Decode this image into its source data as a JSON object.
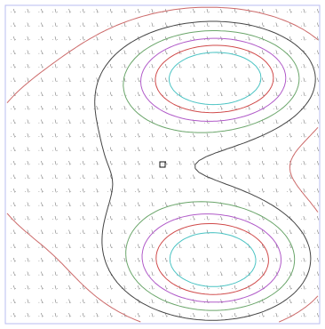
{
  "chart_data": {
    "type": "contour",
    "grid_cols": 23,
    "grid_rows": 23,
    "field_center_offset": 22,
    "point_glyph": ". \\.",
    "grid": false,
    "xlim": [
      0,
      1
    ],
    "ylim": [
      0,
      1
    ],
    "levels": [
      2,
      4,
      6,
      8,
      10,
      12
    ],
    "level_colors": [
      "#cc6a6a",
      "#444444",
      "#6aa56a",
      "#b05ac8",
      "#d04a4a",
      "#4ac3c3"
    ],
    "frame_color": "#b9bdf0",
    "marker": {
      "x": 0.5,
      "y": 0.5,
      "glyph": "square"
    },
    "sources": [
      {
        "x": 0.68,
        "y": 0.78,
        "amp": 14,
        "sx": 0.18,
        "sy": 0.1
      },
      {
        "x": 0.67,
        "y": 0.19,
        "amp": 14,
        "sx": 0.18,
        "sy": 0.11
      },
      {
        "x": 0.4,
        "y": 0.52,
        "amp": 4,
        "sx": 0.4,
        "sy": 0.28
      }
    ]
  }
}
